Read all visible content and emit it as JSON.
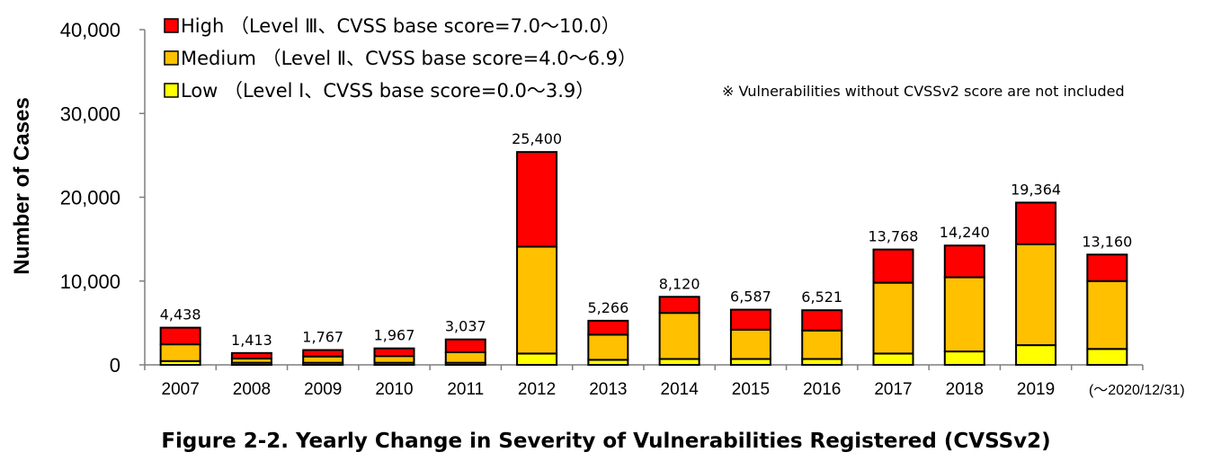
{
  "chart_data": {
    "type": "bar",
    "stacked": true,
    "ylabel": "Number of Cases",
    "ylim": [
      0,
      40000
    ],
    "yticks": [
      "0",
      "10,000",
      "20,000",
      "30,000",
      "40,000"
    ],
    "categories": [
      "2007",
      "2008",
      "2009",
      "2010",
      "2011",
      "2012",
      "2013",
      "2014",
      "2015",
      "2016",
      "2017",
      "2018",
      "2019",
      "(～2020/12/31)"
    ],
    "totals_labels": [
      "4,438",
      "1,413",
      "1,767",
      "1,967",
      "3,037",
      "25,400",
      "5,266",
      "8,120",
      "6,587",
      "6,521",
      "13,768",
      "14,240",
      "19,364",
      "13,160"
    ],
    "series": [
      {
        "name": "Low （Level I、CVSS base score=0.0～3.9）",
        "color": "#ffff00",
        "values": [
          450,
          250,
          250,
          250,
          250,
          1350,
          600,
          700,
          700,
          700,
          1350,
          1600,
          2350,
          1900
        ]
      },
      {
        "name": "Medium （Level Ⅱ、CVSS base score=4.0～6.9）",
        "color": "#ffc000",
        "values": [
          2000,
          500,
          750,
          800,
          1250,
          12750,
          3000,
          5500,
          3500,
          3400,
          8450,
          8850,
          12050,
          8100
        ]
      },
      {
        "name": "High （Level Ⅲ、CVSS base score=7.0～10.0）",
        "color": "#ff0000",
        "values": [
          1988,
          663,
          767,
          917,
          1537,
          11300,
          1666,
          1920,
          2387,
          2421,
          3968,
          3790,
          4964,
          3160
        ]
      }
    ],
    "legend_order": [
      "High （Level Ⅲ、CVSS base score=7.0～10.0）",
      "Medium （Level Ⅱ、CVSS base score=4.0～6.9）",
      "Low （Level I、CVSS base score=0.0～3.9）"
    ],
    "legend_position": "top-left",
    "note": "※ Vulnerabilities without CVSSv2 score are not included",
    "grid": false
  },
  "caption": "Figure 2-2. Yearly Change in Severity of Vulnerabilities Registered (CVSSv2)"
}
